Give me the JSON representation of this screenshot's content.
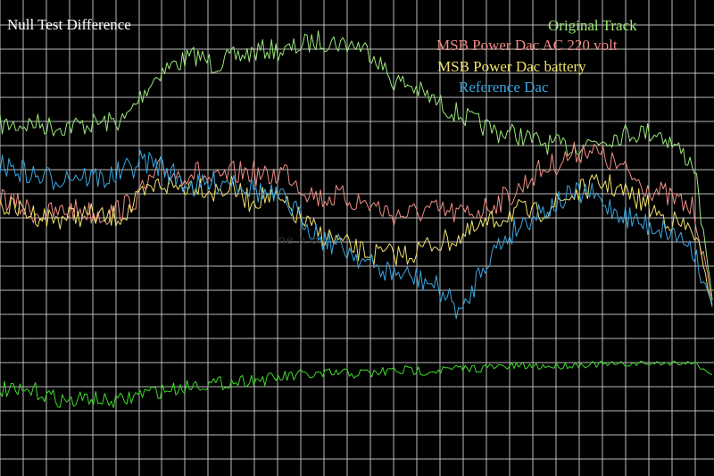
{
  "chart_data": {
    "type": "line",
    "title": "Null Test Difference",
    "grid": true,
    "legend_position": "top-right",
    "x": [
      0,
      1,
      2,
      3,
      4,
      5,
      6,
      7,
      8,
      9,
      10,
      11,
      12,
      13,
      14,
      15,
      16,
      17,
      18,
      19,
      20,
      21,
      22,
      23,
      24,
      25,
      26,
      27,
      28,
      29,
      30,
      31,
      32,
      33,
      34,
      35,
      36,
      37,
      38,
      39,
      40
    ],
    "series": [
      {
        "name": "Original Track",
        "color": "#9be87a",
        "values": [
          140,
          140,
          138,
          142,
          141,
          139,
          137,
          135,
          105,
          80,
          70,
          62,
          72,
          65,
          60,
          55,
          58,
          50,
          45,
          48,
          50,
          60,
          90,
          95,
          108,
          120,
          130,
          140,
          148,
          150,
          158,
          162,
          165,
          160,
          155,
          150,
          148,
          148,
          165,
          185,
          335
        ]
      },
      {
        "name": "MSB Power Dac AC 220 volt",
        "color": "#ef8c85",
        "values": [
          220,
          230,
          238,
          240,
          235,
          238,
          240,
          232,
          215,
          190,
          195,
          192,
          205,
          195,
          192,
          200,
          190,
          210,
          222,
          220,
          225,
          230,
          240,
          240,
          235,
          238,
          240,
          235,
          225,
          215,
          195,
          185,
          175,
          165,
          178,
          190,
          205,
          215,
          225,
          235,
          335
        ]
      },
      {
        "name": "MSB Power Dac  battery",
        "color": "#f0e26a",
        "values": [
          230,
          235,
          240,
          245,
          242,
          240,
          245,
          240,
          220,
          205,
          210,
          205,
          215,
          210,
          225,
          220,
          230,
          248,
          262,
          270,
          280,
          285,
          285,
          285,
          275,
          270,
          265,
          255,
          245,
          235,
          240,
          230,
          220,
          210,
          205,
          215,
          225,
          240,
          250,
          260,
          340
        ]
      },
      {
        "name": "Reference Dac",
        "color": "#39a7e0",
        "values": [
          185,
          190,
          198,
          200,
          195,
          198,
          200,
          192,
          180,
          185,
          200,
          210,
          205,
          200,
          210,
          218,
          225,
          245,
          265,
          275,
          285,
          300,
          305,
          310,
          315,
          330,
          352,
          300,
          275,
          255,
          240,
          230,
          220,
          215,
          230,
          240,
          250,
          255,
          262,
          280,
          345
        ]
      },
      {
        "name": "",
        "color": "#3edb29",
        "values": [
          435,
          440,
          438,
          445,
          450,
          445,
          450,
          448,
          440,
          438,
          435,
          430,
          430,
          428,
          425,
          425,
          422,
          420,
          420,
          418,
          418,
          418,
          415,
          415,
          415,
          414,
          413,
          412,
          411,
          410,
          410,
          410,
          409,
          408,
          408,
          408,
          407,
          407,
          406,
          406,
          420
        ]
      }
    ]
  }
}
